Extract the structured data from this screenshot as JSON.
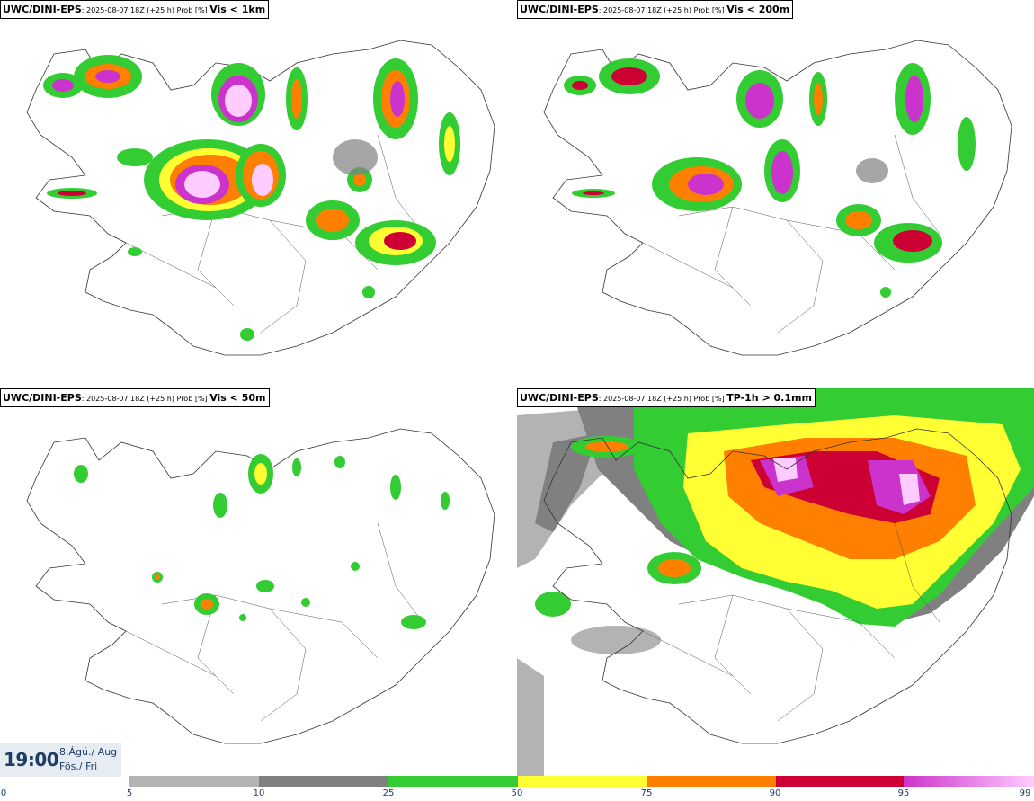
{
  "panels": [
    {
      "model": "UWC/DINI-EPS",
      "meta": ": 2025-08-07 18Z (+25 h) Prob [%] ",
      "variable": "Vis < 1km"
    },
    {
      "model": "UWC/DINI-EPS",
      "meta": ": 2025-08-07 18Z (+25 h) Prob [%] ",
      "variable": "Vis < 200m"
    },
    {
      "model": "UWC/DINI-EPS",
      "meta": ": 2025-08-07 18Z (+25 h) Prob [%] ",
      "variable": "Vis < 50m"
    },
    {
      "model": "UWC/DINI-EPS",
      "meta": ": 2025-08-07 18Z (+25 h) Prob [%] ",
      "variable": "TP-1h > 0.1mm"
    }
  ],
  "valid_time": {
    "time": "19:00",
    "date_line1": "8.Ágú./ Aug",
    "date_line2": "Fös./ Fri"
  },
  "legend": {
    "ticks": [
      "0",
      "5",
      "10",
      "25",
      "50",
      "75",
      "90",
      "95",
      "99"
    ],
    "colors": [
      "#ffffff",
      "#b3b3b3",
      "#808080",
      "#33cc33",
      "#ffff33",
      "#ff7f00",
      "#cc0033",
      "#cc33cc",
      "#ffccff"
    ]
  }
}
